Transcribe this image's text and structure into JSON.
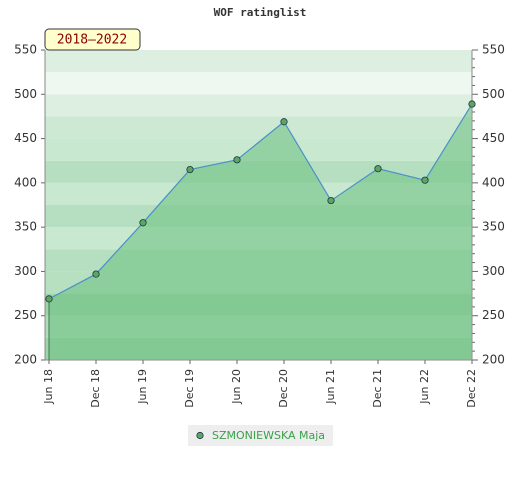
{
  "chart_data": {
    "type": "area",
    "title": "WOF ratinglist",
    "label": "2018–2022",
    "categories": [
      "Jun 18",
      "Dec 18",
      "Jun 19",
      "Dec 19",
      "Jun 20",
      "Dec 20",
      "Jun 21",
      "Dec 21",
      "Jun 22",
      "Dec 22"
    ],
    "series": [
      {
        "name": "SZMONIEWSKA Maja",
        "color": "#4a90c8",
        "values": [
          269,
          297,
          355,
          415,
          426,
          469,
          380,
          416,
          403,
          489
        ]
      }
    ],
    "ylim": [
      200,
      550
    ],
    "yticks": [
      200,
      250,
      300,
      350,
      400,
      450,
      500,
      550
    ],
    "grid": true
  }
}
